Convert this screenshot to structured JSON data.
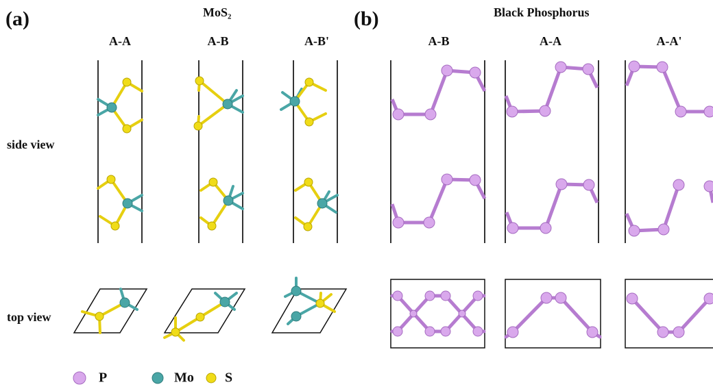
{
  "panel_a": {
    "label": "(a)",
    "title": "MoS₂",
    "columns": [
      "A-A",
      "A-B",
      "A-B'"
    ],
    "rows": [
      "side view",
      "top view"
    ]
  },
  "panel_b": {
    "label": "(b)",
    "title": "Black Phosphorus",
    "columns": [
      "A-B",
      "A-A",
      "A-A'"
    ]
  },
  "legend": [
    "P",
    "Mo",
    "S"
  ]
}
